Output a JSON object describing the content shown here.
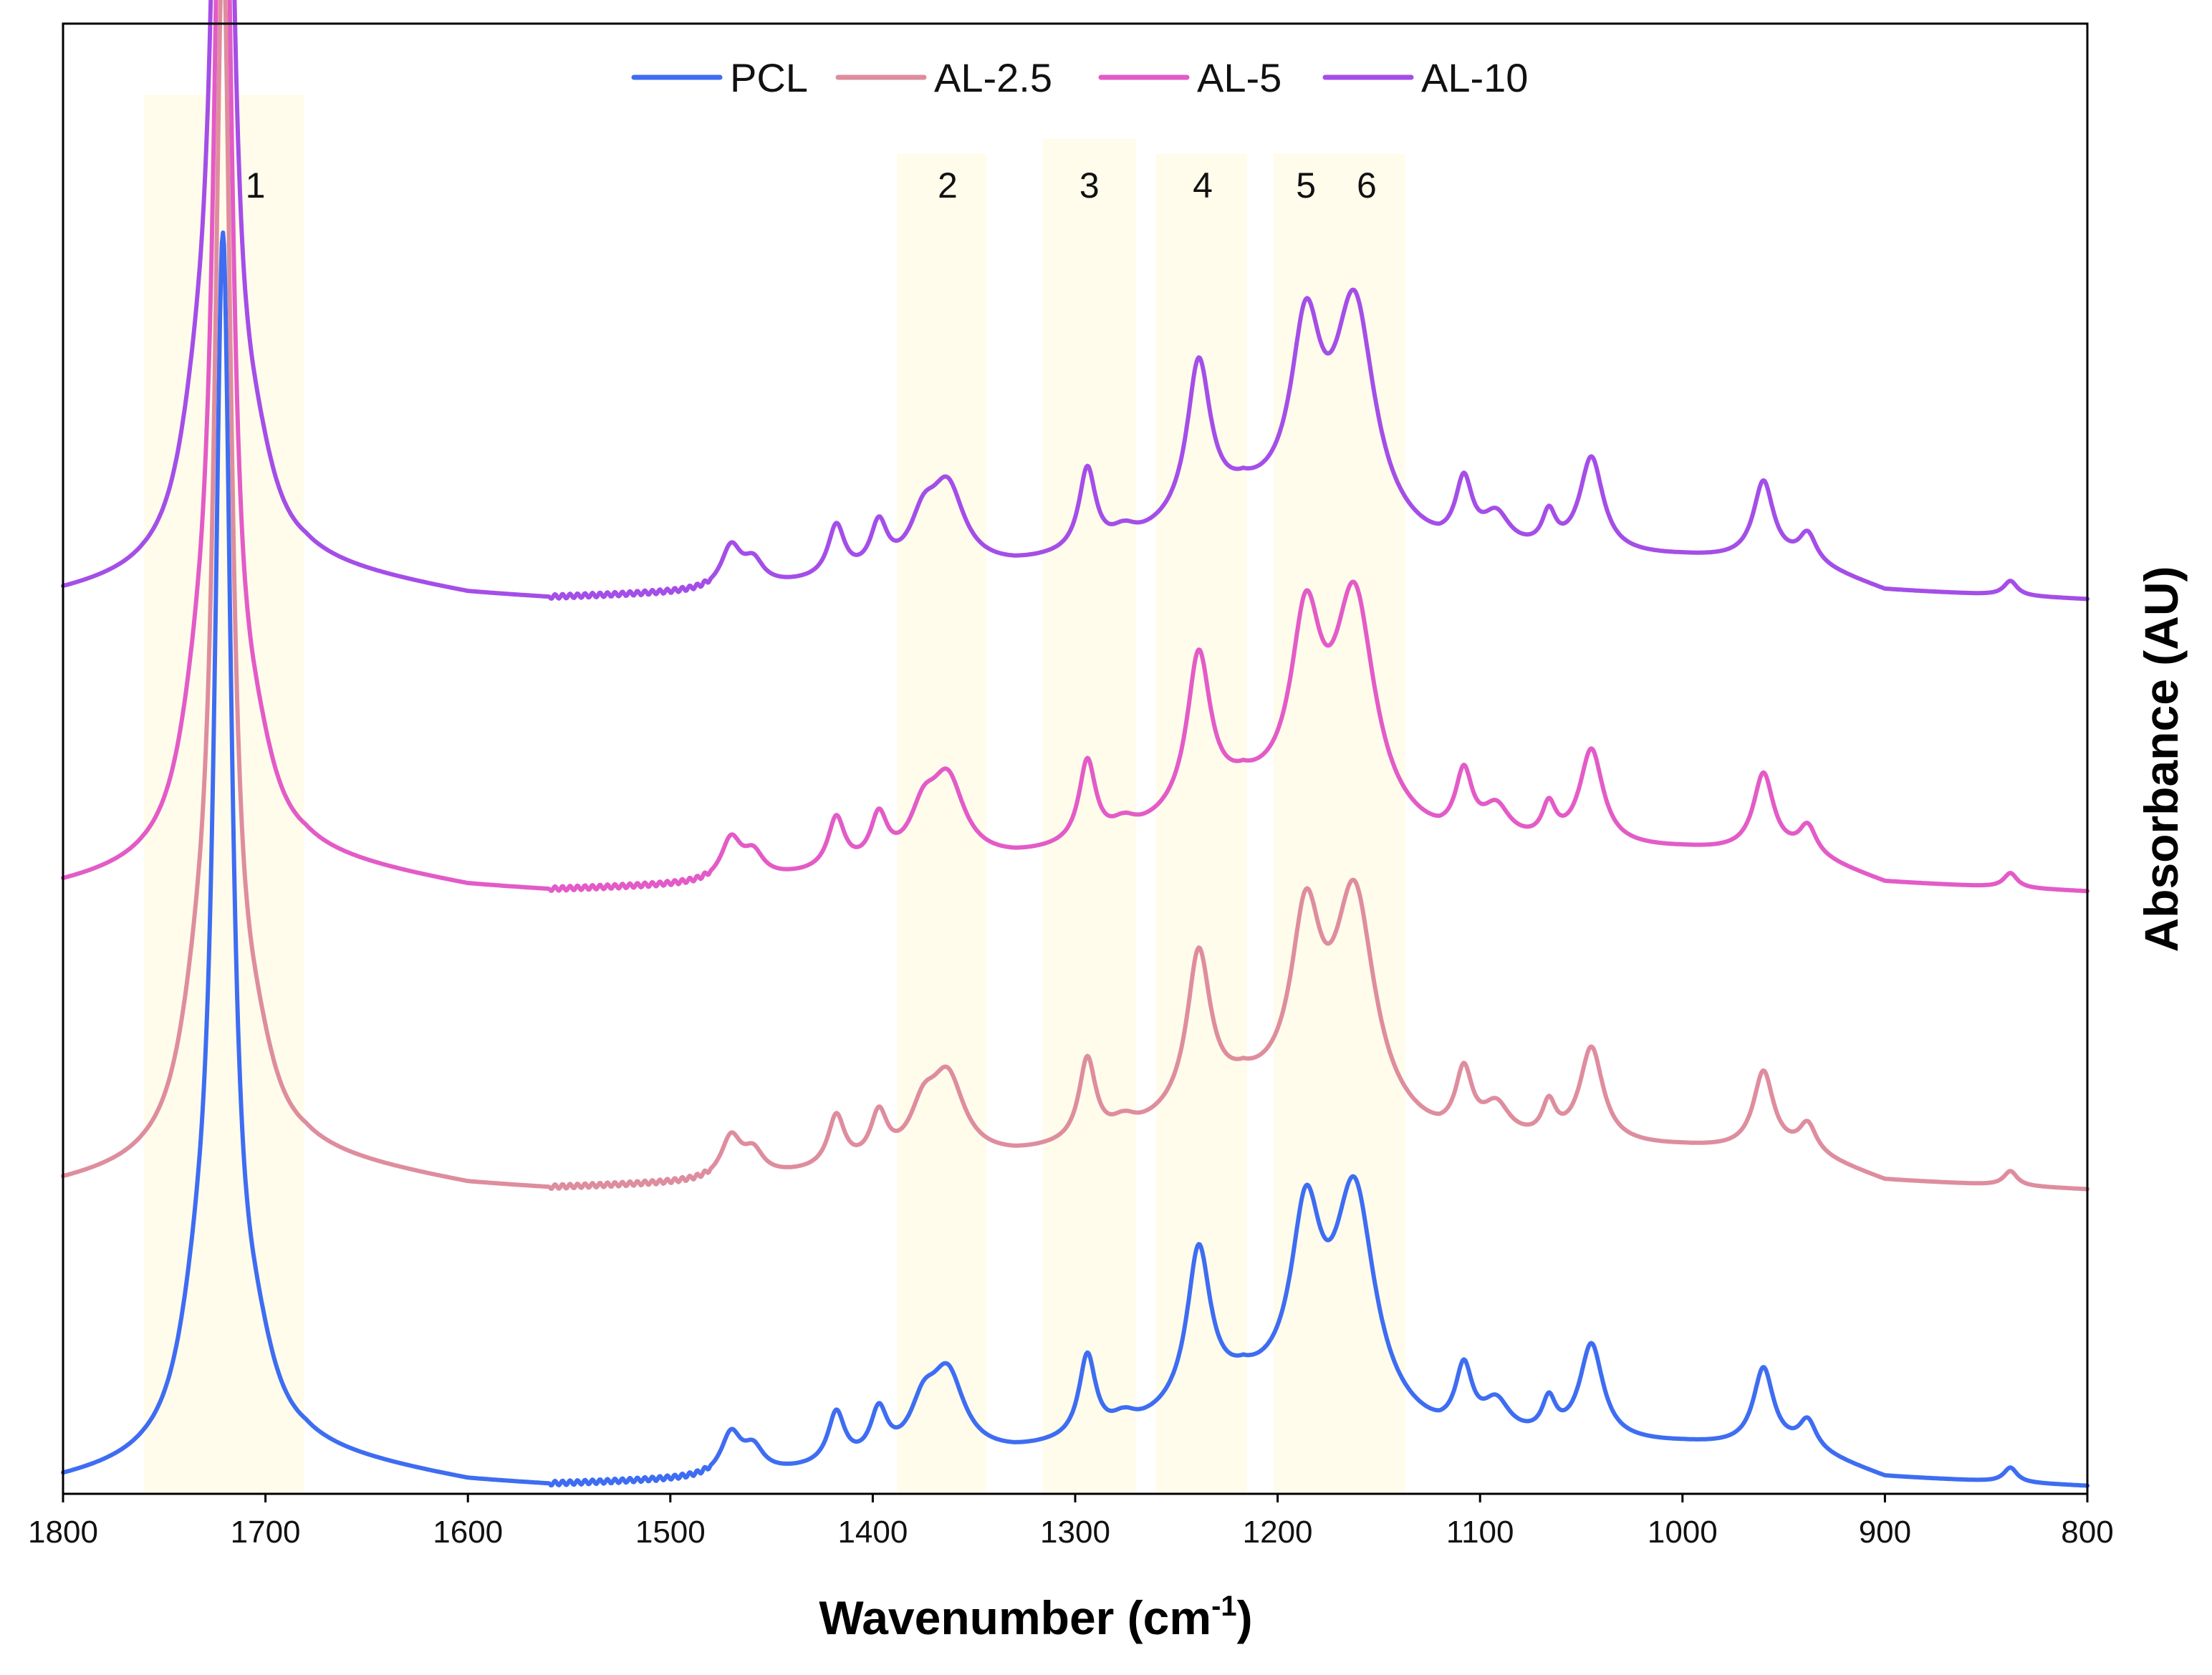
{
  "chart_data": {
    "type": "line",
    "title": "",
    "xlabel": "Wavenumber (cm",
    "xlabel_superscript": "-1",
    "xlabel_suffix": ")",
    "ylabel": "Absorbance (AU)",
    "xlim": [
      1800,
      800
    ],
    "x_reversed": true,
    "ylim": [
      0,
      100
    ],
    "y_ticks_shown": false,
    "grid": false,
    "legend_position": "top-center",
    "x_ticks": [
      "1800",
      "1700",
      "1600",
      "1500",
      "1400",
      "1300",
      "1200",
      "1100",
      "1000",
      "900",
      "800"
    ],
    "highlight_bands": [
      {
        "label": "1",
        "from": 1760,
        "to": 1681,
        "top_abs": 95
      },
      {
        "label": "2",
        "from": 1388,
        "to": 1344,
        "top_abs": 91
      },
      {
        "label": "3",
        "from": 1316,
        "to": 1270,
        "top_abs": 92
      },
      {
        "label": "4",
        "from": 1260,
        "to": 1215,
        "top_abs": 91
      },
      {
        "label": "5",
        "from": 1202,
        "to": 1137,
        "top_abs": 91
      },
      {
        "label": "6",
        "from": 1202,
        "to": 1137,
        "top_abs": 91
      }
    ],
    "band_label_positions": [
      {
        "label": "1",
        "x": 1705,
        "y_abs": 88
      },
      {
        "label": "2",
        "x": 1363,
        "y_abs": 88
      },
      {
        "label": "3",
        "x": 1293,
        "y_abs": 88
      },
      {
        "label": "4",
        "x": 1237,
        "y_abs": 88
      },
      {
        "label": "5",
        "x": 1186,
        "y_abs": 88
      },
      {
        "label": "6",
        "x": 1156,
        "y_abs": 88
      }
    ],
    "series": [
      {
        "name": "PCL",
        "color": "#3e6df2",
        "offset": 0
      },
      {
        "name": "AL-2.5",
        "color": "#de8d9e",
        "offset": 20.2
      },
      {
        "name": "AL-5",
        "color": "#e35bc7",
        "offset": 40.5
      },
      {
        "name": "AL-10",
        "color": "#a44ee8",
        "offset": 60.4
      }
    ],
    "baseline_points": [
      [
        1800,
        0.5
      ],
      [
        1760,
        1.3
      ],
      [
        1680,
        2.3
      ],
      [
        1600,
        0.5
      ],
      [
        1560,
        0.2
      ],
      [
        1480,
        0.6
      ],
      [
        1330,
        2.3
      ],
      [
        1276,
        3.4
      ],
      [
        1217,
        6.5
      ],
      [
        1120,
        3.1
      ],
      [
        1000,
        3.0
      ],
      [
        940,
        2.7
      ],
      [
        900,
        0.8
      ],
      [
        800,
        0.2
      ]
    ],
    "peaks": [
      {
        "center": 1721,
        "height": 78,
        "width": 5
      },
      {
        "center": 1733,
        "height": 8,
        "width": 12
      },
      {
        "center": 1705,
        "height": 5,
        "width": 12
      },
      {
        "center": 1470,
        "height": 2.8,
        "width": 6
      },
      {
        "center": 1459,
        "height": 1.6,
        "width": 6
      },
      {
        "center": 1418,
        "height": 3.5,
        "width": 5
      },
      {
        "center": 1397,
        "height": 3.2,
        "width": 5
      },
      {
        "center": 1375,
        "height": 3.0,
        "width": 8
      },
      {
        "center": 1363,
        "height": 5.4,
        "width": 10
      },
      {
        "center": 1294,
        "height": 5.6,
        "width": 5
      },
      {
        "center": 1276,
        "height": 1.0,
        "width": 7
      },
      {
        "center": 1239,
        "height": 10.5,
        "width": 7
      },
      {
        "center": 1186,
        "height": 12,
        "width": 9
      },
      {
        "center": 1162,
        "height": 15,
        "width": 12
      },
      {
        "center": 1108,
        "height": 4.3,
        "width": 5
      },
      {
        "center": 1092,
        "height": 2.2,
        "width": 8
      },
      {
        "center": 1066,
        "height": 2.3,
        "width": 4
      },
      {
        "center": 1045,
        "height": 6.5,
        "width": 7
      },
      {
        "center": 960,
        "height": 5.3,
        "width": 6
      },
      {
        "center": 938,
        "height": 1.8,
        "width": 5
      },
      {
        "center": 838,
        "height": 1.0,
        "width": 4
      }
    ]
  }
}
